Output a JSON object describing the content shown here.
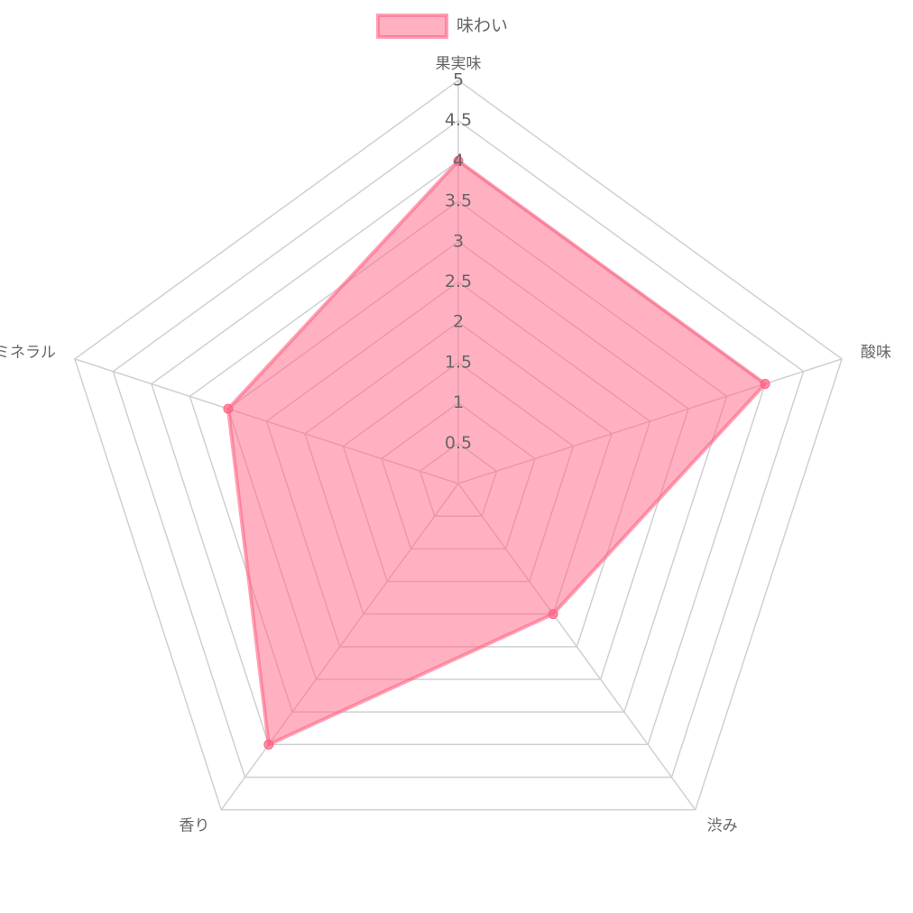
{
  "chart_data": {
    "type": "radar",
    "categories": [
      "果実味",
      "酸味",
      "渋み",
      "香り",
      "ミネラル"
    ],
    "series": [
      {
        "name": "味わい",
        "color": "#ff6384",
        "values": [
          4,
          4,
          2,
          4,
          3
        ]
      }
    ],
    "ylim": [
      0,
      5
    ],
    "yticks": [
      0.5,
      1,
      1.5,
      2,
      2.5,
      3,
      3.5,
      4,
      4.5,
      5
    ],
    "grid": true,
    "legend": "top"
  }
}
